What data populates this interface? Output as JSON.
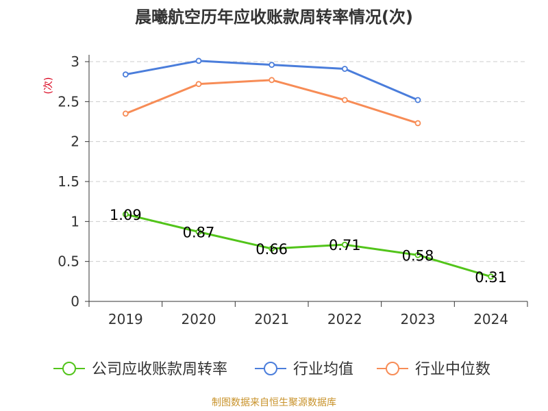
{
  "chart_data": {
    "type": "line",
    "title": "晨曦航空历年应收账款周转率情况(次)",
    "ylabel": "(次)",
    "xlabel": "",
    "categories": [
      "2019",
      "2020",
      "2021",
      "2022",
      "2023",
      "2024"
    ],
    "ylim": [
      0,
      3
    ],
    "yticks": [
      "0",
      "0.5",
      "1",
      "1.5",
      "2",
      "2.5",
      "3"
    ],
    "grid": true,
    "legend_position": "bottom",
    "series": [
      {
        "name": "公司应收账款周转率",
        "color": "#52c41a",
        "values": [
          1.09,
          0.87,
          0.66,
          0.71,
          0.58,
          0.31
        ],
        "labels": [
          "1.09",
          "0.87",
          "0.66",
          "0.71",
          "0.58",
          "0.31"
        ]
      },
      {
        "name": "行业均值",
        "color": "#4a7ddb",
        "values": [
          2.84,
          3.01,
          2.96,
          2.91,
          2.52,
          null
        ]
      },
      {
        "name": "行业中位数",
        "color": "#f78c56",
        "values": [
          2.35,
          2.72,
          2.77,
          2.52,
          2.23,
          null
        ]
      }
    ],
    "source_note": "制图数据来自恒生聚源数据库",
    "source_color": "#c8922a"
  }
}
